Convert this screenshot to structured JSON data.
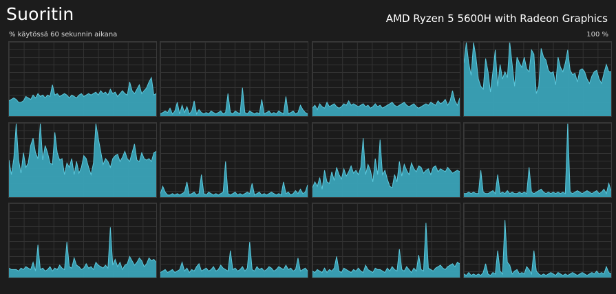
{
  "header": {
    "title": "Suoritin",
    "cpu_name": "AMD Ryzen 5 5600H with Radeon Graphics",
    "usage_label": "% käytössä 60 sekunnin aikana",
    "max_label": "100 %"
  },
  "colors": {
    "fill": "#3aa3b8",
    "line": "#5cc8dc",
    "grid": "#333333",
    "border": "#3a3a3a"
  },
  "chart_data": {
    "type": "area",
    "ylim": [
      0,
      100
    ],
    "series": [
      {
        "values": [
          20,
          22,
          24,
          22,
          18,
          18,
          20,
          26,
          24,
          22,
          28,
          24,
          30,
          26,
          28,
          24,
          28,
          26,
          42,
          28,
          30,
          26,
          28,
          30,
          28,
          24,
          28,
          26,
          24,
          28,
          30,
          26,
          28,
          30,
          28,
          30,
          32,
          28,
          34,
          30,
          32,
          28,
          36,
          30,
          32,
          26,
          30,
          34,
          30,
          28,
          46,
          34,
          30,
          36,
          42,
          30,
          34,
          38,
          46,
          52,
          28,
          30
        ]
      },
      {
        "values": [
          2,
          4,
          6,
          4,
          10,
          2,
          6,
          18,
          2,
          14,
          4,
          12,
          2,
          6,
          20,
          2,
          8,
          4,
          2,
          4,
          2,
          6,
          4,
          2,
          4,
          6,
          2,
          4,
          30,
          4,
          2,
          6,
          4,
          2,
          38,
          4,
          2,
          6,
          4,
          2,
          4,
          2,
          22,
          2,
          4,
          6,
          2,
          4,
          2,
          6,
          4,
          2,
          26,
          2,
          4,
          6,
          2,
          4,
          14,
          8,
          4,
          2
        ]
      },
      {
        "values": [
          10,
          14,
          8,
          16,
          12,
          10,
          18,
          12,
          14,
          16,
          12,
          10,
          12,
          16,
          14,
          20,
          14,
          16,
          14,
          12,
          14,
          16,
          12,
          14,
          10,
          12,
          16,
          12,
          14,
          10,
          12,
          14,
          16,
          18,
          14,
          12,
          14,
          16,
          18,
          14,
          12,
          14,
          16,
          12,
          10,
          12,
          14,
          16,
          14,
          18,
          16,
          14,
          20,
          16,
          18,
          22,
          14,
          20,
          34,
          20,
          14,
          24
        ]
      },
      {
        "values": [
          72,
          100,
          72,
          55,
          100,
          80,
          50,
          40,
          36,
          78,
          60,
          32,
          60,
          90,
          40,
          70,
          50,
          60,
          52,
          100,
          70,
          40,
          80,
          72,
          66,
          80,
          64,
          60,
          90,
          84,
          30,
          40,
          92,
          80,
          76,
          62,
          58,
          60,
          42,
          80,
          66,
          60,
          72,
          90,
          62,
          56,
          58,
          46,
          62,
          64,
          60,
          50,
          44,
          54,
          60,
          62,
          50,
          44,
          58,
          70,
          60,
          60
        ]
      },
      {
        "values": [
          50,
          30,
          52,
          100,
          50,
          32,
          60,
          40,
          46,
          70,
          80,
          60,
          52,
          100,
          50,
          70,
          60,
          46,
          44,
          88,
          60,
          50,
          52,
          30,
          46,
          40,
          52,
          30,
          48,
          32,
          40,
          56,
          52,
          40,
          30,
          46,
          100,
          80,
          62,
          44,
          52,
          48,
          40,
          52,
          56,
          58,
          48,
          54,
          62,
          52,
          48,
          60,
          72,
          50,
          48,
          60,
          52,
          50,
          52,
          48,
          60,
          62
        ]
      },
      {
        "values": [
          4,
          14,
          6,
          2,
          2,
          4,
          2,
          4,
          2,
          4,
          6,
          20,
          2,
          4,
          6,
          2,
          4,
          30,
          4,
          2,
          6,
          4,
          2,
          4,
          2,
          4,
          6,
          48,
          4,
          2,
          4,
          6,
          2,
          4,
          2,
          4,
          6,
          4,
          18,
          2,
          4,
          6,
          2,
          4,
          2,
          4,
          6,
          4,
          2,
          4,
          2,
          20,
          4,
          6,
          2,
          4,
          8,
          4,
          10,
          4,
          6,
          16
        ]
      },
      {
        "values": [
          12,
          20,
          14,
          26,
          10,
          36,
          20,
          18,
          34,
          22,
          40,
          30,
          24,
          38,
          28,
          34,
          42,
          32,
          36,
          30,
          40,
          80,
          30,
          44,
          36,
          20,
          52,
          30,
          78,
          30,
          36,
          24,
          14,
          12,
          30,
          20,
          48,
          28,
          44,
          36,
          30,
          46,
          38,
          34,
          42,
          40,
          32,
          36,
          38,
          30,
          40,
          42,
          34,
          38,
          36,
          34,
          40,
          36,
          32,
          34,
          36,
          34
        ]
      },
      {
        "values": [
          4,
          4,
          6,
          4,
          6,
          4,
          4,
          36,
          6,
          4,
          4,
          6,
          8,
          4,
          30,
          4,
          6,
          4,
          8,
          4,
          6,
          4,
          4,
          6,
          4,
          6,
          4,
          40,
          6,
          4,
          6,
          8,
          10,
          6,
          4,
          6,
          4,
          6,
          4,
          6,
          4,
          6,
          4,
          100,
          6,
          4,
          6,
          8,
          6,
          4,
          6,
          8,
          6,
          4,
          6,
          8,
          4,
          6,
          10,
          4,
          18,
          8
        ]
      },
      {
        "values": [
          12,
          10,
          10,
          10,
          8,
          12,
          10,
          14,
          12,
          10,
          20,
          8,
          44,
          10,
          12,
          8,
          10,
          14,
          8,
          12,
          10,
          16,
          12,
          10,
          48,
          14,
          12,
          26,
          16,
          14,
          10,
          12,
          18,
          12,
          14,
          10,
          20,
          16,
          14,
          12,
          16,
          12,
          68,
          16,
          24,
          14,
          20,
          10,
          16,
          18,
          28,
          22,
          16,
          20,
          26,
          22,
          14,
          18,
          26,
          22,
          24,
          20
        ]
      },
      {
        "values": [
          6,
          8,
          10,
          6,
          8,
          10,
          6,
          8,
          10,
          20,
          8,
          12,
          6,
          10,
          8,
          14,
          18,
          8,
          10,
          12,
          8,
          10,
          14,
          8,
          10,
          16,
          12,
          10,
          8,
          36,
          10,
          12,
          8,
          10,
          14,
          8,
          12,
          48,
          10,
          8,
          14,
          10,
          12,
          8,
          10,
          14,
          12,
          8,
          10,
          14,
          12,
          10,
          16,
          10,
          12,
          8,
          10,
          26,
          8,
          10,
          12,
          8
        ]
      },
      {
        "values": [
          8,
          6,
          10,
          8,
          6,
          12,
          6,
          10,
          8,
          12,
          28,
          8,
          6,
          12,
          10,
          8,
          6,
          10,
          8,
          12,
          8,
          6,
          16,
          10,
          8,
          6,
          12,
          10,
          10,
          8,
          6,
          12,
          8,
          14,
          10,
          8,
          38,
          10,
          8,
          14,
          10,
          6,
          12,
          8,
          30,
          10,
          8,
          74,
          12,
          10,
          8,
          12,
          14,
          16,
          12,
          10,
          14,
          16,
          18,
          14,
          20,
          18
        ]
      },
      {
        "values": [
          4,
          2,
          6,
          2,
          4,
          2,
          4,
          2,
          6,
          18,
          4,
          2,
          6,
          4,
          36,
          8,
          4,
          78,
          20,
          16,
          4,
          8,
          10,
          4,
          6,
          4,
          14,
          10,
          4,
          36,
          8,
          4,
          2,
          4,
          2,
          4,
          6,
          4,
          2,
          6,
          4,
          2,
          4,
          2,
          4,
          6,
          4,
          2,
          4,
          6,
          4,
          2,
          4,
          6,
          4,
          8,
          4,
          6,
          4,
          14,
          6,
          4
        ]
      }
    ]
  }
}
